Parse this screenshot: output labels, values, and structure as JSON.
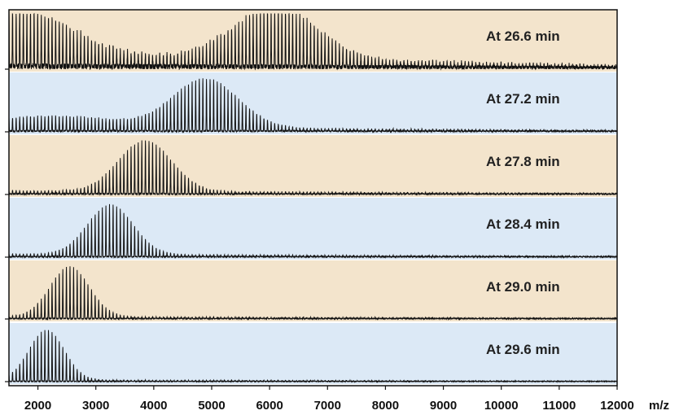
{
  "chart_data": {
    "type": "line",
    "xlabel": "m/z",
    "ylabel": "",
    "xlim": [
      1500,
      12000
    ],
    "x_ticks": [
      "2000",
      "3000",
      "4000",
      "5000",
      "6000",
      "7000",
      "8000",
      "9000",
      "10000",
      "11000",
      "12000"
    ],
    "x_tick_values": [
      2000,
      3000,
      4000,
      5000,
      6000,
      7000,
      8000,
      9000,
      10000,
      11000,
      12000
    ],
    "grid": false,
    "peak_spacing_mz": 62,
    "panels": [
      {
        "label": "At 26.6 min",
        "background": "#f3e4cc",
        "envelopes": [
          {
            "center": 1700,
            "width": 1200,
            "height": 0.8
          },
          {
            "center": 6100,
            "width": 1000,
            "height": 0.95
          }
        ],
        "baseline": 0.25,
        "baseline_decay_end": 12000,
        "noise": 0.12
      },
      {
        "label": "At 27.2 min",
        "background": "#dce9f6",
        "envelopes": [
          {
            "center": 2300,
            "width": 1600,
            "height": 0.2
          },
          {
            "center": 4900,
            "width": 800,
            "height": 0.88
          }
        ],
        "baseline": 0.08,
        "baseline_decay_end": 12000,
        "noise": 0.05
      },
      {
        "label": "At 27.8 min",
        "background": "#f3e4cc",
        "envelopes": [
          {
            "center": 3850,
            "width": 650,
            "height": 0.92
          }
        ],
        "baseline": 0.06,
        "baseline_decay_end": 12000,
        "noise": 0.04
      },
      {
        "label": "At 28.4 min",
        "background": "#dce9f6",
        "envelopes": [
          {
            "center": 3250,
            "width": 560,
            "height": 0.9
          }
        ],
        "baseline": 0.05,
        "baseline_decay_end": 12000,
        "noise": 0.03
      },
      {
        "label": "At 29.0 min",
        "background": "#f3e4cc",
        "envelopes": [
          {
            "center": 2550,
            "width": 480,
            "height": 0.92
          }
        ],
        "baseline": 0.04,
        "baseline_decay_end": 12000,
        "noise": 0.03
      },
      {
        "label": "At 29.6 min",
        "background": "#dce9f6",
        "envelopes": [
          {
            "center": 2150,
            "width": 430,
            "height": 0.92
          }
        ],
        "baseline": 0.03,
        "baseline_decay_end": 12000,
        "noise": 0.02
      }
    ]
  }
}
